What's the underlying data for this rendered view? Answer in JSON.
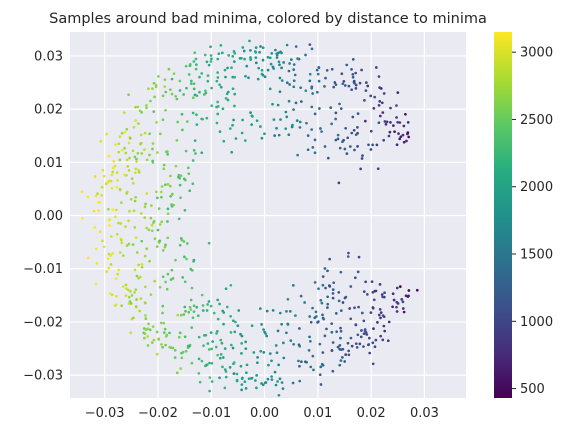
{
  "chart_data": {
    "type": "scatter",
    "title": "Samples around bad minima, colored by distance to minima",
    "xlabel": "",
    "ylabel": "",
    "xlim": [
      -0.0365,
      0.0378
    ],
    "ylim": [
      -0.0343,
      0.0345
    ],
    "x_ticks": [
      -0.03,
      -0.02,
      -0.01,
      0.0,
      0.01,
      0.02,
      0.03
    ],
    "x_tick_labels": [
      "−0.03",
      "−0.02",
      "−0.01",
      "0.00",
      "0.01",
      "0.02",
      "0.03"
    ],
    "y_ticks": [
      -0.03,
      -0.02,
      -0.01,
      0.0,
      0.01,
      0.02,
      0.03
    ],
    "y_tick_labels": [
      "−0.03",
      "−0.02",
      "−0.01",
      "0.00",
      "0.01",
      "0.02",
      "0.03"
    ],
    "grid": true,
    "background_color": "#eaeaf2",
    "colormap": "viridis",
    "colorbar": {
      "range": [
        430,
        3150
      ],
      "ticks": [
        500,
        1000,
        1500,
        2000,
        2500,
        3000
      ],
      "tick_labels": [
        "500",
        "1000",
        "1500",
        "2000",
        "2500",
        "3000"
      ]
    },
    "point_count": 1000,
    "distribution": {
      "shape": "horseshoe ring opening toward the right, centered near (0.00, 0.00), radius about 0.031",
      "color_relation": "distance to minima increases from about 450 at the right edge (x=0.033) to about 3100 at the left edge (x=-0.032)"
    }
  }
}
